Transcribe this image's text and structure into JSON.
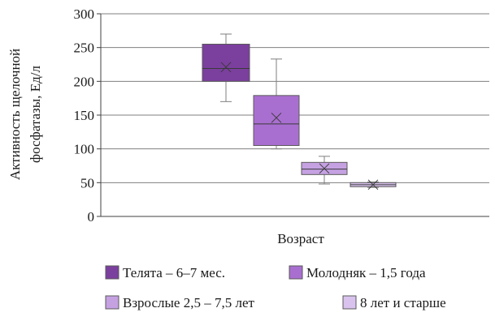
{
  "chart_data": {
    "type": "box",
    "ylabel": "Активность щелочной фосфатазы, Ед/л",
    "xlabel": "Возраст",
    "ylim": [
      0,
      300
    ],
    "yticks": [
      0,
      50,
      100,
      150,
      200,
      250,
      300
    ],
    "ytick_labels": [
      "0",
      "50",
      "100",
      "150",
      "200",
      "250",
      "300"
    ],
    "grid": true,
    "legend_position": "bottom",
    "series": [
      {
        "name": "Телята – 6–7 мес.",
        "color": "#7b3f9e",
        "min": 170,
        "q1": 200,
        "median": 219,
        "q3": 255,
        "max": 270,
        "mean": 221
      },
      {
        "name": "Молодняк – 1,5 года",
        "color": "#a96fd0",
        "min": 100,
        "q1": 105,
        "median": 137,
        "q3": 179,
        "max": 233,
        "mean": 146
      },
      {
        "name": "Взрослые 2,5 – 7,5 лет",
        "color": "#c5a1e2",
        "min": 48,
        "q1": 62,
        "median": 70,
        "q3": 80,
        "max": 89,
        "mean": 71
      },
      {
        "name": "8 лет и старше",
        "color": "#d9c3ee",
        "min": 43,
        "q1": 44,
        "median": 47,
        "q3": 50,
        "max": 51,
        "mean": 47
      }
    ]
  }
}
